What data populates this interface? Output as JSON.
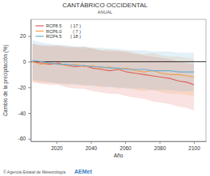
{
  "chart_data": {
    "type": "line",
    "title": "CANTÁBRICO OCCIDENTAL",
    "subtitle": "ANUAL",
    "x_label": "Año",
    "y_label": "Cambio de la precipitación (%)",
    "source": "© Agencia Estatal de Meteorología",
    "logo": "AEMet",
    "x": [
      2006,
      2011,
      2016,
      2021,
      2026,
      2031,
      2036,
      2041,
      2046,
      2051,
      2056,
      2061,
      2066,
      2071,
      2076,
      2081,
      2086,
      2091,
      2096,
      2100
    ],
    "series": [
      {
        "name": "RCP8.5",
        "color": "#e0605a",
        "models": {
          "value": 17,
          "label": "( 17 )"
        },
        "values": [
          0,
          -1,
          -2,
          -1,
          -3,
          -4,
          -3,
          -5,
          -6,
          -7,
          -6,
          -8,
          -9,
          -10,
          -11,
          -12,
          -13,
          -15,
          -16,
          -18
        ],
        "lower": [
          -16,
          -17,
          -18,
          -18,
          -20,
          -21,
          -21,
          -23,
          -24,
          -25,
          -25,
          -27,
          -28,
          -29,
          -31,
          -32,
          -33,
          -35,
          -36,
          -38
        ],
        "upper": [
          14,
          13,
          12,
          13,
          12,
          11,
          12,
          10,
          9,
          8,
          9,
          7,
          6,
          5,
          4,
          3,
          2,
          0,
          -1,
          -2
        ]
      },
      {
        "name": "RCP6.0",
        "color": "#f0a050",
        "models": {
          "value": 7,
          "label": "( 7 )"
        },
        "values": [
          0,
          -2,
          -1,
          -2,
          -3,
          -2,
          -4,
          -3,
          -5,
          -4,
          -6,
          -5,
          -7,
          -8,
          -7,
          -9,
          -10,
          -10,
          -11,
          -12
        ],
        "lower": [
          -15,
          -17,
          -16,
          -17,
          -18,
          -17,
          -19,
          -18,
          -20,
          -19,
          -21,
          -20,
          -22,
          -23,
          -22,
          -24,
          -25,
          -25,
          -26,
          -27
        ],
        "upper": [
          14,
          12,
          13,
          12,
          11,
          12,
          10,
          11,
          9,
          10,
          8,
          9,
          7,
          6,
          7,
          5,
          4,
          4,
          3,
          2
        ]
      },
      {
        "name": "RCP4.5",
        "color": "#6aaed6",
        "models": {
          "value": 18,
          "label": "( 18 )"
        },
        "values": [
          1,
          0,
          -1,
          -2,
          -2,
          -3,
          -3,
          -4,
          -4,
          -5,
          -5,
          -6,
          -6,
          -6,
          -7,
          -7,
          -7,
          -8,
          -8,
          -8
        ],
        "lower": [
          -14,
          -15,
          -16,
          -17,
          -17,
          -18,
          -18,
          -19,
          -19,
          -20,
          -20,
          -21,
          -21,
          -21,
          -22,
          -22,
          -22,
          -23,
          -23,
          -23
        ],
        "upper": [
          17,
          15,
          14,
          13,
          13,
          12,
          12,
          11,
          11,
          10,
          10,
          9,
          9,
          9,
          8,
          8,
          8,
          7,
          7,
          7
        ]
      }
    ],
    "hline": 0,
    "xlim": [
      2005,
      2107
    ],
    "xticks": [
      2020,
      2040,
      2060,
      2080,
      2100
    ],
    "ylim": [
      -62,
      33
    ],
    "yticks": [
      -60,
      -40,
      -20,
      0,
      20
    ],
    "grid": false,
    "legend": "upper left"
  }
}
